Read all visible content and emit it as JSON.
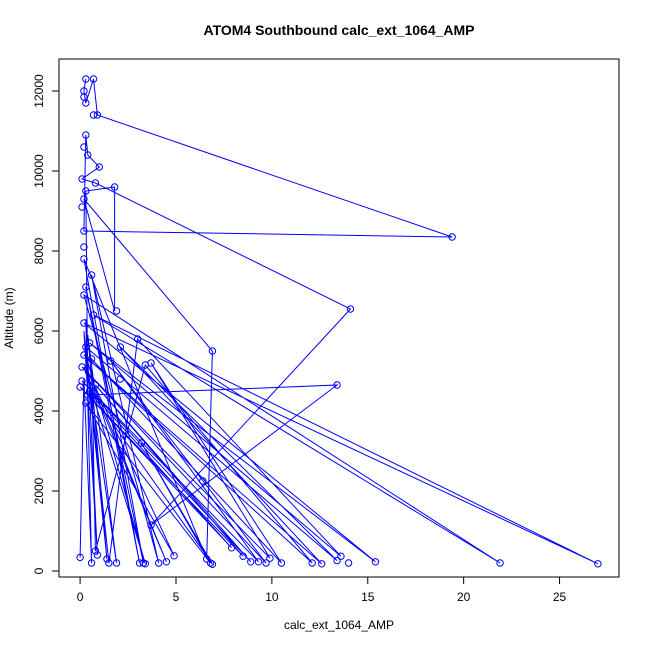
{
  "chart_data": {
    "type": "scatter",
    "title": "ATOM4 Southbound calc_ext_1064_AMP",
    "xlabel": "calc_ext_1064_AMP",
    "ylabel": "Altitude (m)",
    "xlim": [
      -1.1,
      28.1
    ],
    "ylim": [
      -150,
      12800
    ],
    "x_ticks": [
      0,
      5,
      10,
      15,
      20,
      25
    ],
    "x_tick_labels": [
      "0",
      "5",
      "10",
      "15",
      "20",
      "25"
    ],
    "y_ticks": [
      0,
      2000,
      4000,
      6000,
      8000,
      10000,
      12000
    ],
    "y_tick_labels": [
      "0",
      "2000",
      "4000",
      "6000",
      "8000",
      "10000",
      "12000"
    ],
    "grid": false,
    "series": [
      {
        "color": "#0000ff",
        "marker": "open-circle",
        "line": true,
        "points": [
          [
            0.3,
            12300
          ],
          [
            0.7,
            12300
          ],
          [
            0.2,
            12000
          ],
          [
            0.2,
            11850
          ],
          [
            0.3,
            11700
          ],
          [
            0.7,
            11400
          ],
          [
            0.9,
            11400
          ],
          [
            19.4,
            8350
          ],
          [
            0.2,
            8500
          ],
          [
            0.3,
            10900
          ],
          [
            0.2,
            10600
          ],
          [
            0.4,
            10400
          ],
          [
            1.0,
            10100
          ],
          [
            0.1,
            9800
          ],
          [
            0.8,
            9700
          ],
          [
            14.1,
            6550
          ],
          [
            0.3,
            9500
          ],
          [
            1.8,
            9600
          ],
          [
            2.1,
            4800
          ],
          [
            0.1,
            9100
          ],
          [
            0.2,
            9300
          ],
          [
            0.6,
            7400
          ],
          [
            0.2,
            8100
          ],
          [
            6.9,
            5500
          ],
          [
            3.7,
            1150
          ],
          [
            0.2,
            7800
          ],
          [
            0.3,
            7100
          ],
          [
            13.4,
            4650
          ],
          [
            0.4,
            4400
          ],
          [
            6.4,
            2250
          ],
          [
            0.2,
            6900
          ],
          [
            0.7,
            6400
          ],
          [
            1.9,
            6500
          ],
          [
            0.2,
            6200
          ],
          [
            0.5,
            5700
          ],
          [
            3.0,
            5800
          ],
          [
            0.3,
            5600
          ],
          [
            2.1,
            5600
          ],
          [
            0.2,
            5400
          ],
          [
            3.4,
            5150
          ],
          [
            0.6,
            5300
          ],
          [
            3.7,
            5200
          ],
          [
            0.1,
            5100
          ],
          [
            1.6,
            5250
          ],
          [
            0.1,
            4750
          ],
          [
            0.8,
            4650
          ],
          [
            0.0,
            4600
          ],
          [
            0.5,
            4500
          ],
          [
            3.2,
            3200
          ],
          [
            0.3,
            4200
          ],
          [
            0.0,
            340
          ],
          [
            0.6,
            200
          ],
          [
            0.8,
            500
          ],
          [
            0.9,
            400
          ],
          [
            1.4,
            300
          ],
          [
            1.5,
            200
          ],
          [
            1.9,
            200
          ],
          [
            3.1,
            200
          ],
          [
            3.3,
            200
          ],
          [
            3.4,
            180
          ],
          [
            4.1,
            200
          ],
          [
            4.5,
            230
          ],
          [
            4.9,
            380
          ],
          [
            6.6,
            300
          ],
          [
            6.8,
            200
          ],
          [
            6.9,
            170
          ],
          [
            7.9,
            580
          ],
          [
            8.5,
            370
          ],
          [
            8.9,
            230
          ],
          [
            9.3,
            230
          ],
          [
            9.7,
            200
          ],
          [
            9.9,
            320
          ],
          [
            10.5,
            200
          ],
          [
            12.1,
            200
          ],
          [
            12.6,
            180
          ],
          [
            13.4,
            260
          ],
          [
            13.6,
            370
          ],
          [
            14.0,
            200
          ],
          [
            15.4,
            230
          ],
          [
            21.9,
            200
          ],
          [
            27.0,
            180
          ]
        ],
        "path": [
          [
            0.3,
            12300
          ],
          [
            0.2,
            12000
          ],
          [
            0.3,
            11700
          ],
          [
            0.7,
            12300
          ],
          [
            0.9,
            11400
          ],
          [
            19.4,
            8350
          ],
          [
            0.2,
            8500
          ],
          [
            0.3,
            10900
          ],
          [
            0.4,
            10400
          ],
          [
            1.0,
            10100
          ],
          [
            0.1,
            9800
          ],
          [
            0.8,
            9700
          ],
          [
            14.1,
            6550
          ],
          [
            3.7,
            1150
          ],
          [
            13.4,
            4650
          ],
          [
            0.4,
            4400
          ],
          [
            0.3,
            9500
          ],
          [
            1.8,
            9600
          ],
          [
            1.8,
            6500
          ],
          [
            0.2,
            9300
          ],
          [
            6.9,
            5500
          ],
          [
            6.6,
            300
          ],
          [
            0.2,
            7800
          ],
          [
            3.1,
            200
          ],
          [
            0.3,
            7100
          ],
          [
            3.3,
            200
          ],
          [
            0.6,
            7400
          ],
          [
            4.1,
            200
          ],
          [
            0.2,
            6900
          ],
          [
            21.9,
            200
          ],
          [
            0.7,
            6400
          ],
          [
            27.0,
            180
          ],
          [
            0.2,
            6200
          ],
          [
            15.4,
            230
          ],
          [
            0.5,
            5700
          ],
          [
            13.6,
            370
          ],
          [
            3.0,
            5800
          ],
          [
            1.5,
            200
          ],
          [
            0.3,
            5600
          ],
          [
            13.4,
            260
          ],
          [
            2.1,
            5600
          ],
          [
            12.6,
            180
          ],
          [
            0.2,
            5400
          ],
          [
            12.1,
            200
          ],
          [
            3.4,
            5150
          ],
          [
            0.8,
            500
          ],
          [
            0.6,
            5300
          ],
          [
            10.5,
            200
          ],
          [
            3.7,
            5200
          ],
          [
            9.9,
            320
          ],
          [
            0.1,
            5100
          ],
          [
            9.7,
            200
          ],
          [
            1.6,
            5250
          ],
          [
            9.3,
            230
          ],
          [
            0.1,
            4750
          ],
          [
            8.9,
            230
          ],
          [
            0.8,
            4650
          ],
          [
            8.5,
            370
          ],
          [
            0.0,
            4600
          ],
          [
            7.9,
            580
          ],
          [
            0.5,
            4500
          ],
          [
            6.9,
            170
          ],
          [
            3.2,
            3200
          ],
          [
            6.8,
            200
          ],
          [
            0.3,
            4200
          ],
          [
            4.9,
            380
          ],
          [
            0.4,
            5000
          ],
          [
            4.5,
            230
          ],
          [
            0.2,
            5100
          ],
          [
            3.4,
            180
          ],
          [
            0.3,
            5400
          ],
          [
            1.9,
            200
          ],
          [
            0.4,
            5900
          ],
          [
            1.4,
            300
          ],
          [
            0.2,
            6000
          ],
          [
            0.9,
            400
          ],
          [
            0.3,
            6300
          ],
          [
            0.6,
            200
          ],
          [
            0.2,
            4800
          ],
          [
            0.0,
            340
          ]
        ]
      }
    ]
  }
}
